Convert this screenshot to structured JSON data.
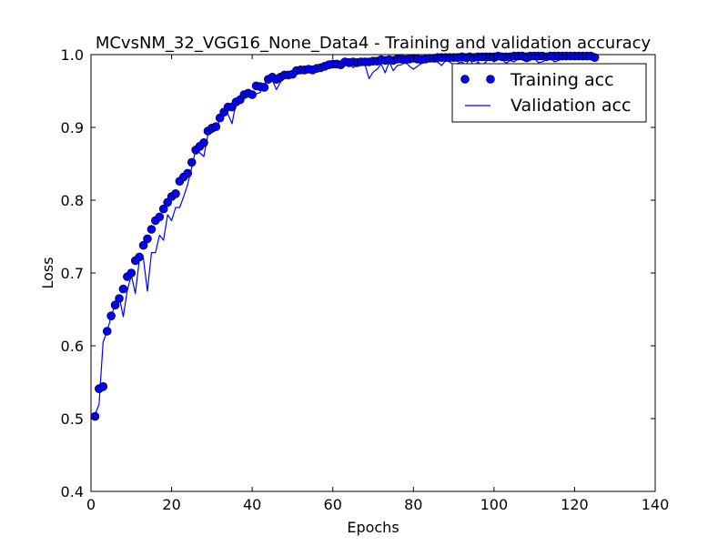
{
  "chart_data": {
    "type": "line",
    "title": "MCvsNM_32_VGG16_None_Data4 - Training and validation accuracy",
    "xlabel": "Epochs",
    "ylabel": "Loss",
    "xlim": [
      0,
      140
    ],
    "ylim": [
      0.4,
      1.0
    ],
    "xticks": [
      0,
      20,
      40,
      60,
      80,
      100,
      120,
      140
    ],
    "yticks": [
      0.4,
      0.5,
      0.6,
      0.7,
      0.8,
      0.9,
      1.0
    ],
    "xtick_labels": [
      "0",
      "20",
      "40",
      "60",
      "80",
      "100",
      "120",
      "140"
    ],
    "ytick_labels": [
      "0.4",
      "0.5",
      "0.6",
      "0.7",
      "0.8",
      "0.9",
      "1.0"
    ],
    "grid": false,
    "legend_position": "top-right",
    "series": [
      {
        "name": "Training acc",
        "style": "markers",
        "color": "#0000ff",
        "x": [
          1,
          2,
          3,
          4,
          5,
          6,
          7,
          8,
          9,
          10,
          11,
          12,
          13,
          14,
          15,
          16,
          17,
          18,
          19,
          20,
          21,
          22,
          23,
          24,
          25,
          26,
          27,
          28,
          29,
          30,
          31,
          32,
          33,
          34,
          35,
          36,
          37,
          38,
          39,
          40,
          41,
          42,
          43,
          44,
          45,
          46,
          47,
          48,
          49,
          50,
          51,
          52,
          53,
          54,
          55,
          56,
          57,
          58,
          59,
          60,
          61,
          62,
          63,
          64,
          65,
          66,
          67,
          68,
          69,
          70,
          71,
          72,
          73,
          74,
          75,
          76,
          77,
          78,
          79,
          80,
          81,
          82,
          83,
          84,
          85,
          86,
          87,
          88,
          89,
          90,
          91,
          92,
          93,
          94,
          95,
          96,
          97,
          98,
          99,
          100,
          101,
          102,
          103,
          104,
          105,
          106,
          107,
          108,
          109,
          110,
          111,
          112,
          113,
          114,
          115,
          116,
          117,
          118,
          119,
          120,
          121,
          122,
          123,
          124,
          125
        ],
        "y": [
          0.503,
          0.541,
          0.544,
          0.62,
          0.641,
          0.656,
          0.665,
          0.678,
          0.695,
          0.7,
          0.717,
          0.722,
          0.738,
          0.747,
          0.76,
          0.772,
          0.777,
          0.788,
          0.797,
          0.805,
          0.809,
          0.826,
          0.832,
          0.837,
          0.852,
          0.869,
          0.874,
          0.879,
          0.895,
          0.899,
          0.901,
          0.913,
          0.921,
          0.928,
          0.928,
          0.935,
          0.938,
          0.945,
          0.947,
          0.945,
          0.957,
          0.956,
          0.955,
          0.966,
          0.969,
          0.966,
          0.969,
          0.972,
          0.972,
          0.973,
          0.978,
          0.979,
          0.979,
          0.98,
          0.979,
          0.981,
          0.982,
          0.984,
          0.986,
          0.987,
          0.987,
          0.986,
          0.99,
          0.989,
          0.99,
          0.989,
          0.99,
          0.99,
          0.99,
          0.991,
          0.991,
          0.993,
          0.992,
          0.993,
          0.992,
          0.994,
          0.994,
          0.993,
          0.994,
          0.995,
          0.994,
          0.993,
          0.994,
          0.995,
          0.995,
          0.996,
          0.996,
          0.996,
          0.996,
          0.996,
          0.996,
          0.997,
          0.996,
          0.997,
          0.996,
          0.997,
          0.997,
          0.997,
          0.997,
          0.997,
          0.998,
          0.997,
          0.997,
          0.997,
          0.998,
          0.998,
          0.998,
          0.997,
          0.998,
          0.998,
          0.998,
          0.998,
          0.997,
          0.998,
          0.998,
          0.998,
          0.998,
          0.998,
          0.998,
          0.998,
          0.998,
          0.998,
          0.998,
          0.998,
          0.996
        ]
      },
      {
        "name": "Validation acc",
        "style": "line",
        "color": "#0000ff",
        "x": [
          1,
          2,
          3,
          4,
          5,
          6,
          7,
          8,
          9,
          10,
          11,
          12,
          13,
          14,
          15,
          16,
          17,
          18,
          19,
          20,
          21,
          22,
          23,
          24,
          25,
          26,
          27,
          28,
          29,
          30,
          31,
          32,
          33,
          34,
          35,
          36,
          37,
          38,
          39,
          40,
          41,
          42,
          43,
          44,
          45,
          46,
          47,
          48,
          49,
          50,
          51,
          52,
          53,
          54,
          55,
          56,
          57,
          58,
          59,
          60,
          61,
          62,
          63,
          64,
          65,
          66,
          67,
          68,
          69,
          70,
          71,
          72,
          73,
          74,
          75,
          76,
          77,
          78,
          79,
          80,
          81,
          82,
          83,
          84,
          85,
          86,
          87,
          88,
          89,
          90,
          91,
          92,
          93,
          94,
          95,
          96,
          97,
          98,
          99,
          100,
          101,
          102,
          103,
          104,
          105,
          106,
          107,
          108,
          109,
          110,
          111,
          112,
          113,
          114,
          115,
          116,
          117,
          118,
          119,
          120,
          121,
          122,
          123,
          124,
          125
        ],
        "y": [
          0.505,
          0.52,
          0.605,
          0.62,
          0.64,
          0.658,
          0.668,
          0.64,
          0.676,
          0.697,
          0.672,
          0.718,
          0.72,
          0.675,
          0.728,
          0.728,
          0.752,
          0.745,
          0.78,
          0.772,
          0.79,
          0.79,
          0.805,
          0.822,
          0.845,
          0.87,
          0.865,
          0.86,
          0.89,
          0.893,
          0.896,
          0.912,
          0.92,
          0.918,
          0.905,
          0.935,
          0.94,
          0.942,
          0.945,
          0.948,
          0.946,
          0.948,
          0.96,
          0.965,
          0.965,
          0.952,
          0.962,
          0.97,
          0.968,
          0.978,
          0.975,
          0.978,
          0.979,
          0.975,
          0.978,
          0.98,
          0.982,
          0.983,
          0.985,
          0.986,
          0.985,
          0.984,
          0.988,
          0.988,
          0.982,
          0.985,
          0.988,
          0.986,
          0.967,
          0.976,
          0.98,
          0.987,
          0.975,
          0.99,
          0.978,
          0.985,
          0.986,
          0.99,
          0.984,
          0.98,
          0.984,
          0.988,
          0.99,
          0.992,
          0.99,
          0.99,
          0.985,
          0.992,
          0.99,
          0.986,
          0.988,
          0.99,
          0.986,
          0.994,
          0.984,
          0.99,
          0.985,
          0.99,
          0.995,
          0.99,
          0.993,
          0.994,
          0.988,
          0.992,
          0.99,
          0.994,
          0.993,
          0.99,
          0.992,
          0.995,
          0.989,
          0.99,
          0.993,
          0.995,
          0.99,
          0.992,
          0.994,
          0.993,
          0.995,
          0.993,
          0.994,
          0.995,
          0.993,
          0.994,
          0.995
        ]
      }
    ]
  }
}
